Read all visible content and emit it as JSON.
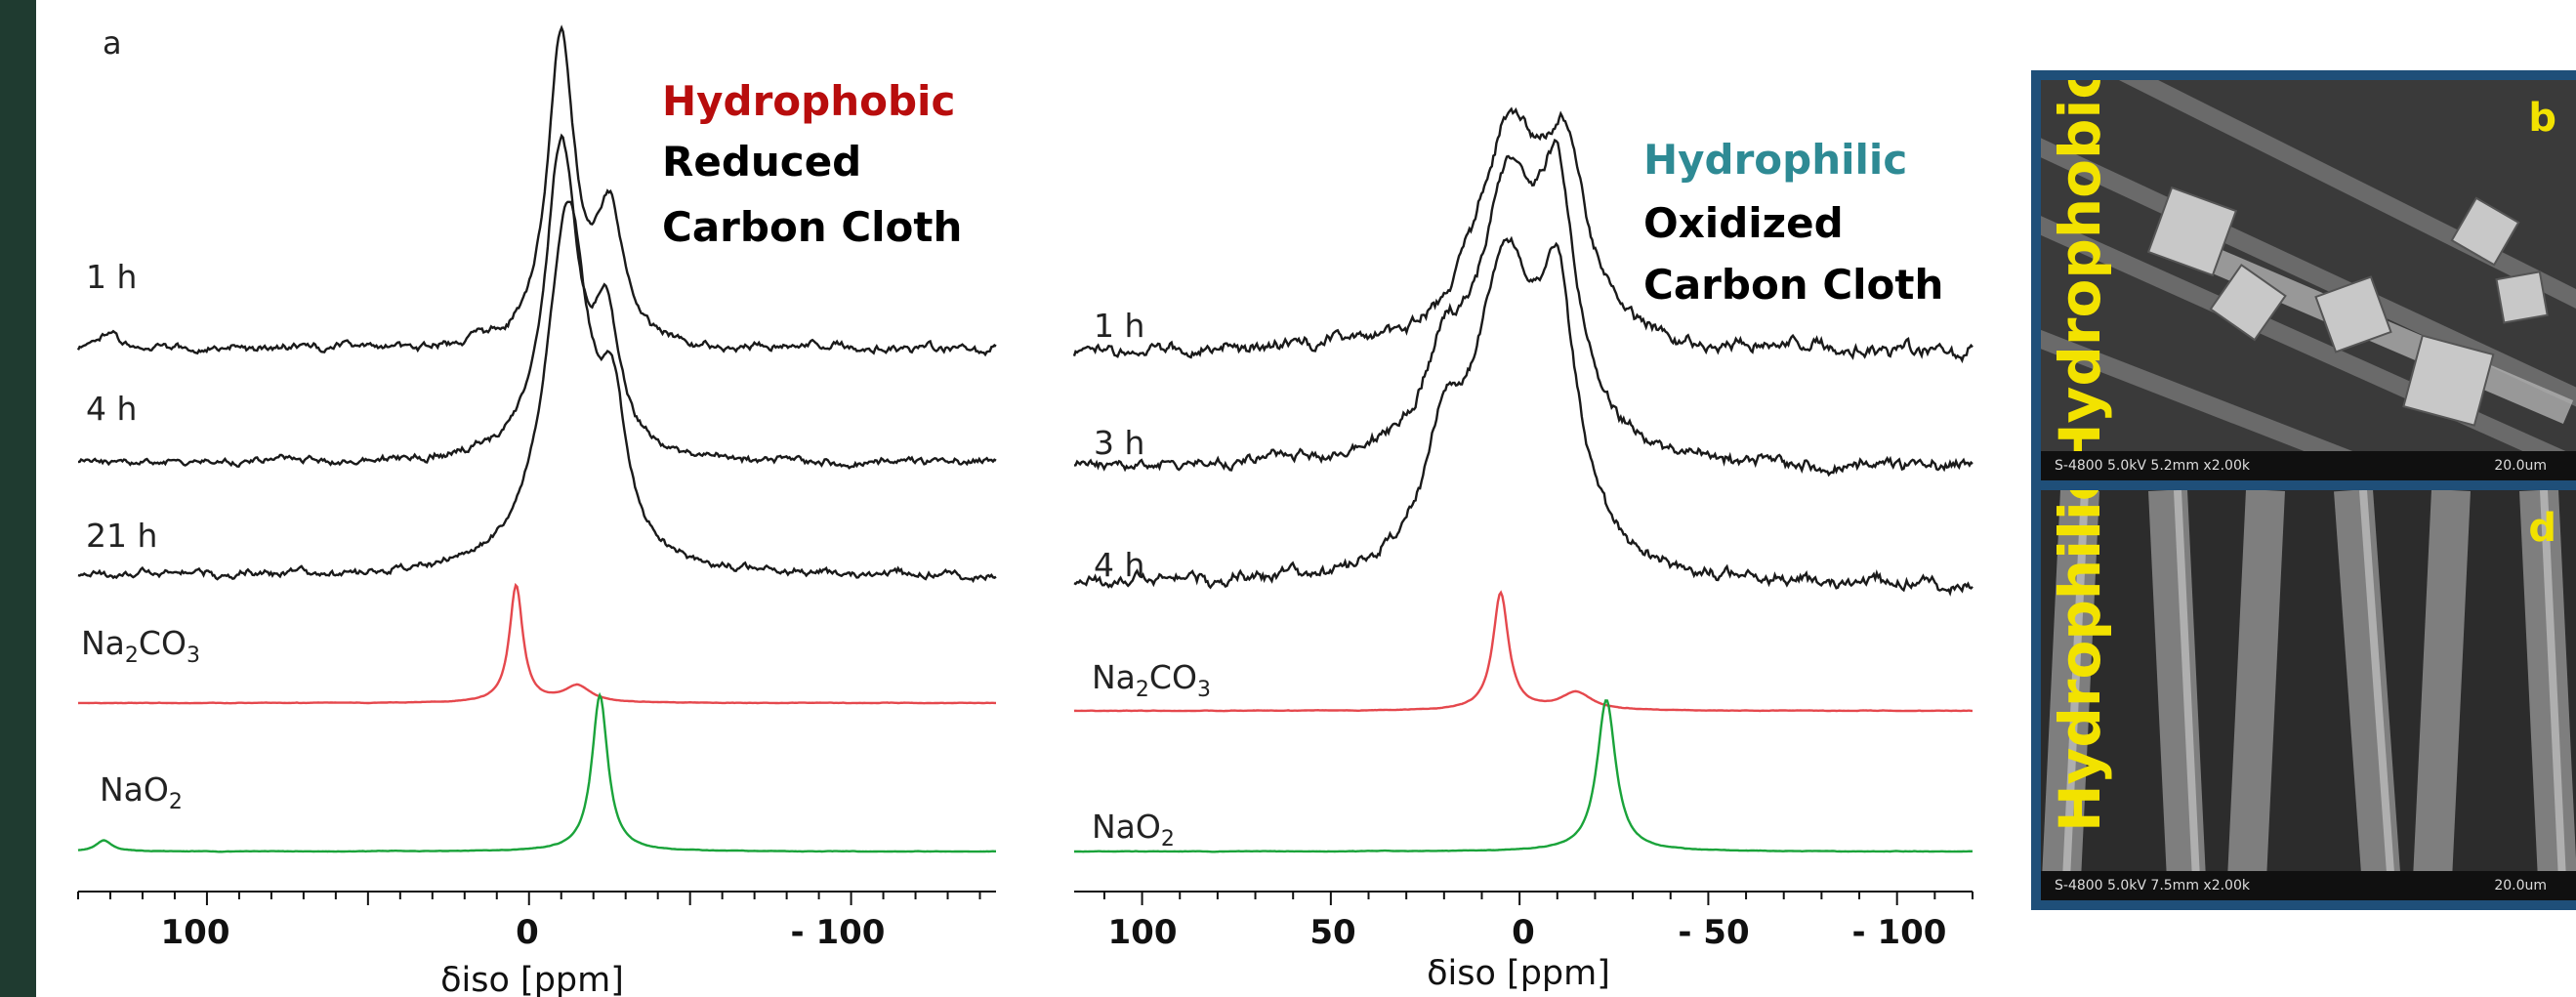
{
  "colors": {
    "left_bar": "#1f3b30",
    "hydrophobic": "#b80d0d",
    "hydrophilic": "#2e8a94",
    "trace_black": "#1a1a1a",
    "trace_red": "#e5484d",
    "trace_green": "#1aa33a",
    "sem_frame": "#1f4f79",
    "sem_text": "#f2e200"
  },
  "panel_a": {
    "letter": "a",
    "title_line1": "Hydrophobic",
    "title_line2": "Reduced",
    "title_line3": "Carbon Cloth",
    "axis_title": "δiso [ppm]",
    "tick_labels": [
      "100",
      "0",
      "- 100"
    ]
  },
  "panel_c": {
    "title_line1": "Hydrophilic",
    "title_line2": "Oxidized",
    "title_line3": "Carbon Cloth",
    "axis_title": "δiso [ppm]",
    "tick_labels": [
      "100",
      "50",
      "0",
      "- 50",
      "- 100"
    ]
  },
  "sem": {
    "top_label": "Hydrophobic",
    "top_letter": "b",
    "top_scale_left": "S-4800 5.0kV 5.2mm x2.00k",
    "top_scale_right": "20.0um",
    "bottom_label": "Hydrophilic",
    "bottom_letter": "d",
    "bottom_scale_left": "S-4800 5.0kV 7.5mm x2.00k",
    "bottom_scale_right": "20.0um"
  },
  "chart_data": [
    {
      "type": "line",
      "axis": "δiso [ppm]",
      "xlim": [
        140,
        -145
      ],
      "x_reversed": true,
      "series": [
        {
          "name": "1 h",
          "color": "black",
          "peaks": [
            {
              "ppm": -10,
              "h": 1.0,
              "w": 5
            },
            {
              "ppm": -25,
              "h": 0.42,
              "w": 5
            },
            {
              "ppm": 130,
              "h": 0.05,
              "w": 4
            }
          ]
        },
        {
          "name": "4 h",
          "color": "black",
          "peaks": [
            {
              "ppm": -10,
              "h": 1.0,
              "w": 6
            },
            {
              "ppm": -24,
              "h": 0.4,
              "w": 5
            }
          ]
        },
        {
          "name": "21 h",
          "color": "black",
          "peaks": [
            {
              "ppm": -12,
              "h": 1.0,
              "w": 8
            },
            {
              "ppm": -26,
              "h": 0.35,
              "w": 5
            }
          ]
        },
        {
          "name": "Na2CO3",
          "color": "red",
          "peaks": [
            {
              "ppm": 4,
              "h": 1.0,
              "w": 2.5
            },
            {
              "ppm": -15,
              "h": 0.14,
              "w": 5
            }
          ]
        },
        {
          "name": "NaO2",
          "color": "green",
          "peaks": [
            {
              "ppm": -22,
              "h": 1.0,
              "w": 3
            },
            {
              "ppm": 132,
              "h": 0.07,
              "w": 3
            }
          ]
        }
      ]
    },
    {
      "type": "line",
      "axis": "δiso [ppm]",
      "xlim": [
        118,
        -120
      ],
      "x_reversed": true,
      "series": [
        {
          "name": "1 h",
          "color": "black",
          "peaks": [
            {
              "ppm": 3,
              "h": 1.0,
              "w": 10
            },
            {
              "ppm": -12,
              "h": 0.8,
              "w": 7
            }
          ]
        },
        {
          "name": "3 h",
          "color": "black",
          "peaks": [
            {
              "ppm": 3,
              "h": 1.0,
              "w": 10
            },
            {
              "ppm": -10,
              "h": 0.85,
              "w": 6
            },
            {
              "ppm": 20,
              "h": 0.3,
              "w": 6
            }
          ]
        },
        {
          "name": "4 h",
          "color": "black",
          "peaks": [
            {
              "ppm": 4,
              "h": 1.0,
              "w": 10
            },
            {
              "ppm": -10,
              "h": 0.8,
              "w": 6
            },
            {
              "ppm": 20,
              "h": 0.35,
              "w": 6
            }
          ]
        },
        {
          "name": "Na2CO3",
          "color": "red",
          "peaks": [
            {
              "ppm": 5,
              "h": 1.0,
              "w": 2.5
            },
            {
              "ppm": -15,
              "h": 0.15,
              "w": 5
            }
          ]
        },
        {
          "name": "NaO2",
          "color": "green",
          "peaks": [
            {
              "ppm": -23,
              "h": 1.0,
              "w": 3
            }
          ]
        }
      ]
    }
  ]
}
